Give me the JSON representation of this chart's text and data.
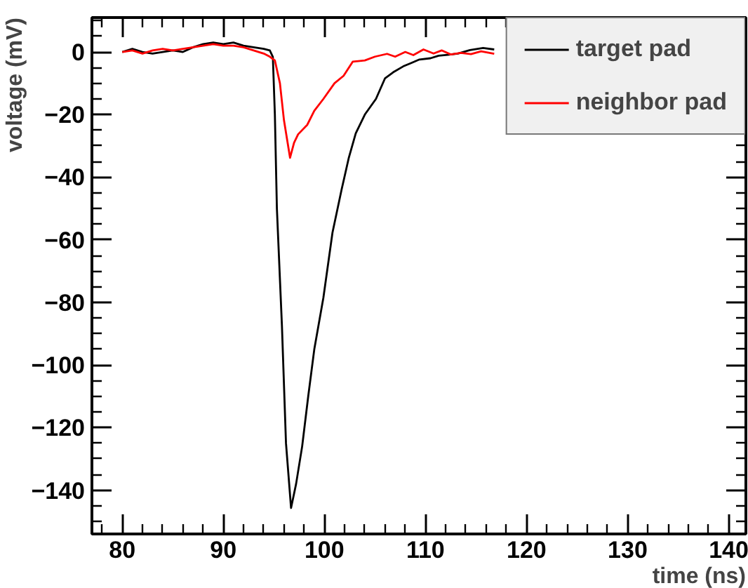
{
  "chart_data": {
    "type": "line",
    "xlabel": "time (ns)",
    "ylabel": "voltage (mV)",
    "xlim": [
      77,
      141.7
    ],
    "ylim": [
      -154,
      11
    ],
    "xticks": [
      80,
      90,
      100,
      110,
      120,
      130,
      140
    ],
    "yticks": [
      -140,
      -120,
      -100,
      -80,
      -60,
      -40,
      -20,
      0
    ],
    "grid": false,
    "legend": "top right",
    "marker": "none",
    "line_style": "solid",
    "series": [
      {
        "name": "target pad",
        "color": "#000000",
        "x": [
          80,
          81,
          82,
          83,
          84,
          85,
          86,
          87,
          88,
          89,
          90,
          91,
          92,
          93,
          94,
          94.6,
          94.9,
          95.1,
          95.3,
          95.8,
          96.2,
          96.7,
          97.2,
          97.8,
          98.4,
          99.0,
          99.9,
          100.8,
          101.7,
          102.4,
          103.1,
          104,
          105.1,
          106,
          106.8,
          107.8,
          108.6,
          109.4,
          110.5,
          111.3,
          112.2,
          113.2,
          114.4,
          115.7,
          116.8
        ],
        "values": [
          0,
          1,
          0,
          -0.5,
          0,
          0.5,
          0,
          1.5,
          2.5,
          3,
          2.5,
          3,
          2,
          1.5,
          1,
          0.5,
          -1.6,
          -20,
          -50,
          -87.6,
          -125,
          -145.7,
          -138,
          -126,
          -110,
          -95,
          -78.5,
          -57.7,
          -44,
          -34,
          -26,
          -20,
          -15,
          -8.4,
          -6.5,
          -4.6,
          -3.5,
          -2.4,
          -2,
          -1.2,
          -0.9,
          -0.5,
          0.6,
          1.3,
          0.8
        ]
      },
      {
        "name": "neighbor pad",
        "color": "#ff0000",
        "x": [
          80,
          81,
          82,
          83,
          84,
          85,
          86,
          87,
          88,
          89,
          90,
          91,
          92,
          93,
          94,
          94.6,
          95.1,
          95.6,
          96,
          96.6,
          97,
          97.4,
          98.3,
          99,
          99.9,
          101,
          101.9,
          102.8,
          104,
          105,
          106.2,
          107,
          108,
          108.8,
          109.8,
          110.8,
          111.6,
          112.5,
          113.5,
          114.5,
          115.5,
          116.8
        ],
        "values": [
          0,
          0.5,
          -0.5,
          0.5,
          1,
          0.5,
          1,
          1.5,
          2,
          2.5,
          2,
          2,
          1.5,
          0.5,
          -0.5,
          -1.5,
          -2.7,
          -10,
          -21.8,
          -33.8,
          -29,
          -26.3,
          -23.3,
          -18.8,
          -15,
          -10,
          -7.6,
          -3.1,
          -2.7,
          -1.5,
          -0.6,
          -1.5,
          0,
          -1,
          0.8,
          -0.5,
          0.5,
          -0.8,
          -0.3,
          -0.7,
          0.2,
          -0.6
        ]
      }
    ]
  }
}
